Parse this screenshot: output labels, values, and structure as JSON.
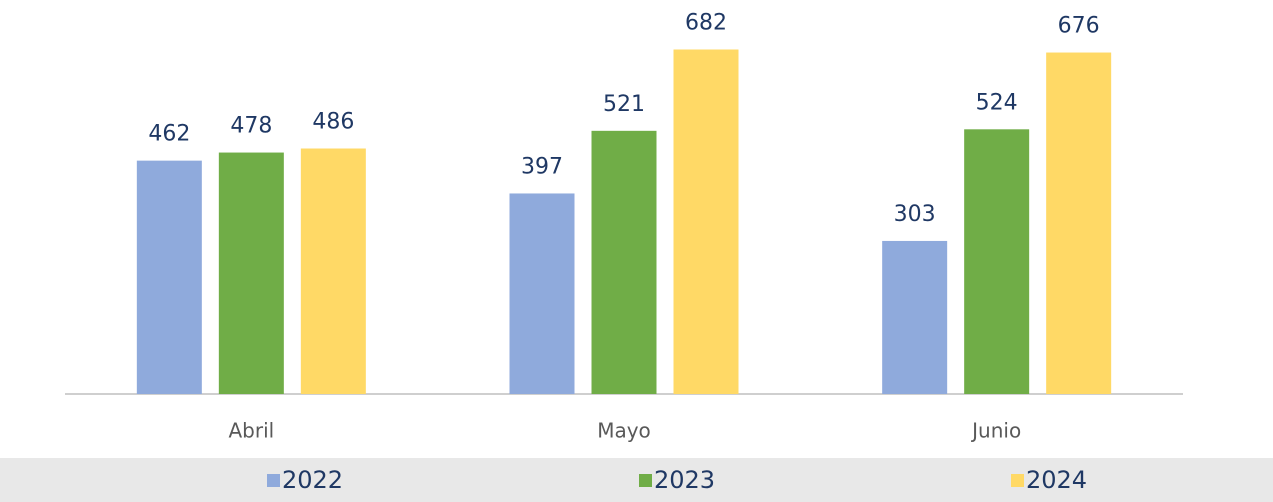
{
  "chart_data": {
    "type": "bar",
    "categories": [
      "Abril",
      "Mayo",
      "Junio"
    ],
    "series": [
      {
        "name": "2022",
        "color": "#8faadc",
        "values": [
          462,
          397,
          303
        ]
      },
      {
        "name": "2023",
        "color": "#70ad47",
        "values": [
          478,
          521,
          524
        ]
      },
      {
        "name": "2024",
        "color": "#ffd966",
        "values": [
          486,
          682,
          676
        ]
      }
    ],
    "ylim": [
      0,
      780
    ],
    "legend": "bottom"
  }
}
